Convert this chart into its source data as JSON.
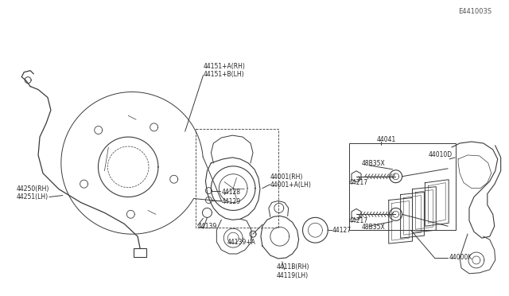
{
  "bg_color": "#ffffff",
  "line_color": "#3a3a3a",
  "text_color": "#222222",
  "fig_width": 6.4,
  "fig_height": 3.72,
  "dpi": 100,
  "watermark": "E441003S",
  "labels": {
    "wire": "44250(RH)\n44251(LH)",
    "sensor_a": "44139+A",
    "bleeder": "44139",
    "bolt1": "44129",
    "bolt2": "44128",
    "caliper": "44001(RH)\n44001+A(LH)",
    "dust_cap": "4411B(RH)\n44119(LH)",
    "seal": "44127",
    "pad_kit": "44000K",
    "shim": "44041",
    "bracket": "44010D",
    "pin1": "44217",
    "pin2": "44217",
    "boot1": "48B35X",
    "boot2": "48B35X",
    "backing": "44151+A(RH)\n44151+B(LH)"
  }
}
